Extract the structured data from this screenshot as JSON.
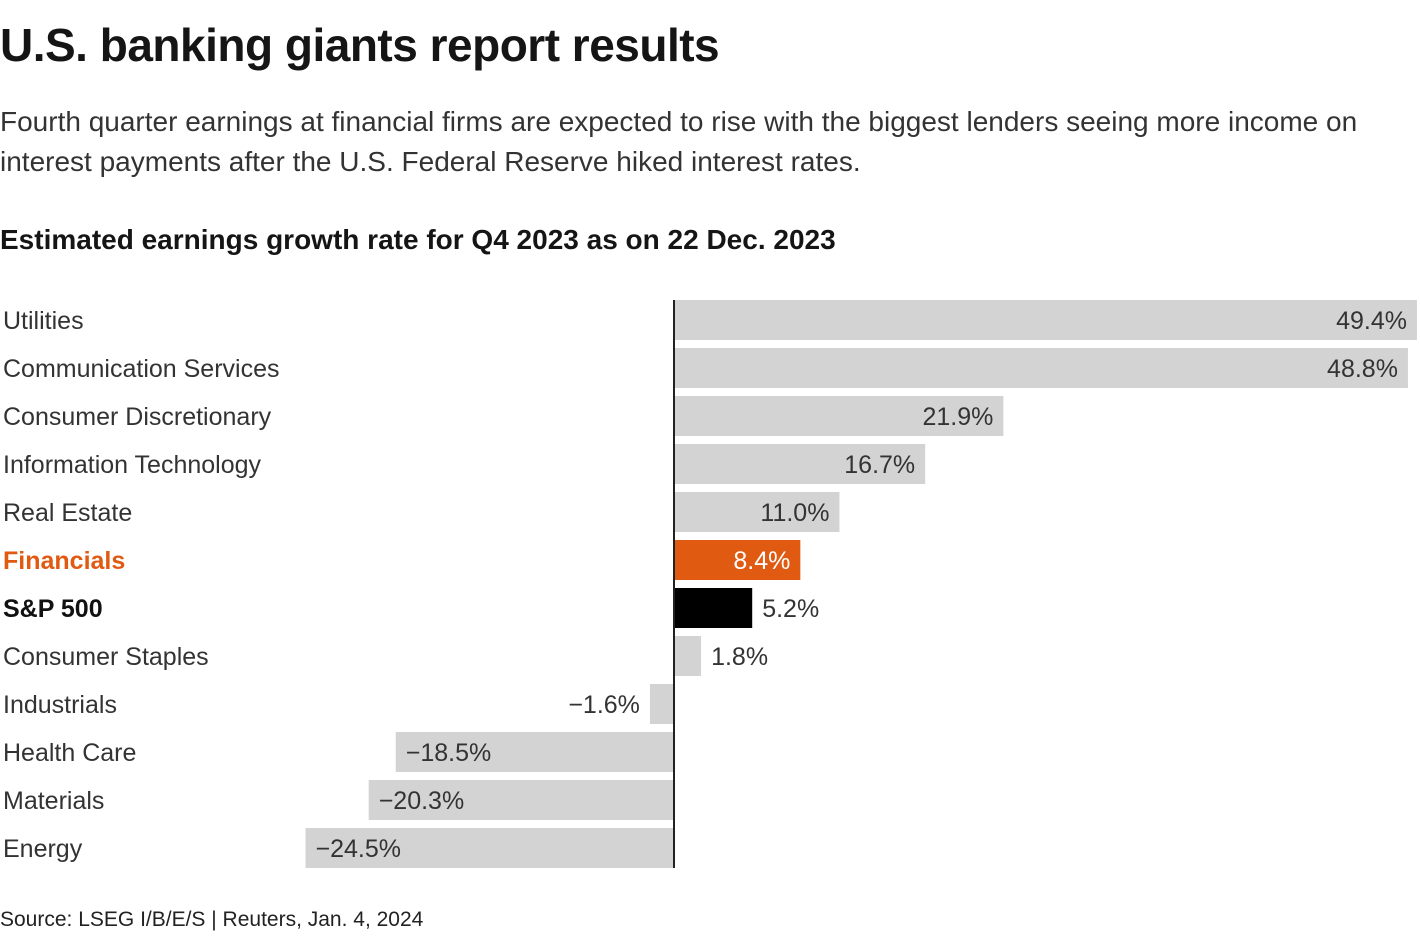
{
  "headline": "U.S. banking giants report results",
  "dek": "Fourth quarter earnings at financial firms are expected to rise with the biggest lenders seeing more income on interest payments after the U.S. Federal Reserve hiked interest rates.",
  "source": "Source: LSEG I/B/E/S | Reuters, Jan. 4, 2024",
  "colors": {
    "default_bar": "#d3d3d3",
    "highlight_bar": "#e05a12",
    "benchmark_bar": "#000000",
    "axis": "#222222",
    "label_text": "#333333"
  },
  "chart_data": {
    "type": "bar",
    "orientation": "horizontal",
    "title": "Estimated earnings growth rate for Q4 2023 as on 22 Dec. 2023",
    "xlim": [
      -24.5,
      49.4
    ],
    "grid": false,
    "categories": [
      {
        "label": "Utilities",
        "value": 49.4,
        "display": "49.4%",
        "style": "default"
      },
      {
        "label": "Communication Services",
        "value": 48.8,
        "display": "48.8%",
        "style": "default"
      },
      {
        "label": "Consumer Discretionary",
        "value": 21.9,
        "display": "21.9%",
        "style": "default"
      },
      {
        "label": "Information Technology",
        "value": 16.7,
        "display": "16.7%",
        "style": "default"
      },
      {
        "label": "Real Estate",
        "value": 11.0,
        "display": "11.0%",
        "style": "default"
      },
      {
        "label": "Financials",
        "value": 8.4,
        "display": "8.4%",
        "style": "highlight"
      },
      {
        "label": "S&P 500",
        "value": 5.2,
        "display": "5.2%",
        "style": "benchmark"
      },
      {
        "label": "Consumer Staples",
        "value": 1.8,
        "display": "1.8%",
        "style": "default"
      },
      {
        "label": "Industrials",
        "value": -1.6,
        "display": "−1.6%",
        "style": "default"
      },
      {
        "label": "Health Care",
        "value": -18.5,
        "display": "−18.5%",
        "style": "default"
      },
      {
        "label": "Materials",
        "value": -20.3,
        "display": "−20.3%",
        "style": "default"
      },
      {
        "label": "Energy",
        "value": -24.5,
        "display": "−24.5%",
        "style": "default"
      }
    ]
  }
}
